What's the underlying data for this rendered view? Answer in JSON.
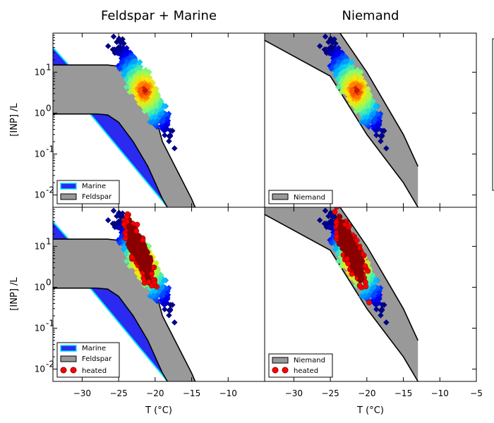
{
  "chart_data": [
    {
      "type": "scatter",
      "title": "Feldspar + Marine",
      "ylabel": "[INP] /L",
      "xlabel": "",
      "xlim": [
        -34,
        -5
      ],
      "ylim": [
        0.005,
        90
      ],
      "yscale": "log",
      "legend": {
        "placement": "lower-left",
        "entries": [
          {
            "label": "Marine",
            "color": "#2a2af0",
            "edge": "#00e5ff"
          },
          {
            "label": "Feldspar",
            "color": "#999999",
            "edge": "#000000"
          }
        ]
      },
      "series": [
        {
          "name": "Marine",
          "kind": "band",
          "color": "#2a2af0",
          "x": [
            -34,
            -14
          ],
          "low": [
            12.0,
            0.0006
          ],
          "high": [
            40.0,
            0.004
          ]
        },
        {
          "name": "Feldspar",
          "kind": "band",
          "color": "#999999",
          "x": [
            -34,
            -28,
            -26.5,
            -25,
            -23,
            -21,
            -20,
            -19,
            -17,
            -15,
            -14
          ],
          "low": [
            0.95,
            0.95,
            0.9,
            0.6,
            0.2,
            0.05,
            0.02,
            0.008,
            0.002,
            0.0004,
            0.0002
          ],
          "high": [
            15,
            15,
            15,
            14,
            8,
            3,
            0.9,
            0.2,
            0.04,
            0.008,
            0.003
          ]
        }
      ]
    },
    {
      "type": "scatter",
      "title": "Niemand",
      "xlim": [
        -34,
        -5
      ],
      "ylim": [
        0.005,
        90
      ],
      "yscale": "log",
      "legend": {
        "placement": "lower-left",
        "entries": [
          {
            "label": "Niemand",
            "color": "#999999",
            "edge": "#000000"
          }
        ]
      },
      "series": [
        {
          "name": "Niemand",
          "kind": "band",
          "color": "#999999",
          "x": [
            -34,
            -25,
            -20,
            -15,
            -13
          ],
          "low": [
            60,
            8,
            0.3,
            0.02,
            0.005
          ],
          "high": [
            500,
            200,
            10,
            0.3,
            0.05
          ]
        }
      ]
    },
    {
      "type": "scatter",
      "title": "",
      "ylabel": "[INP] /L",
      "xlabel": "T (°C)",
      "xlim": [
        -34,
        -5
      ],
      "ylim": [
        0.005,
        90
      ],
      "yscale": "log",
      "legend": {
        "placement": "lower-left",
        "entries": [
          {
            "label": "Marine",
            "color": "#2a2af0",
            "edge": "#00e5ff"
          },
          {
            "label": "Feldspar",
            "color": "#999999",
            "edge": "#000000"
          },
          {
            "label": "heated",
            "color": "#ff0000",
            "edge": "#8b0000"
          }
        ]
      },
      "series": [
        {
          "name": "Marine",
          "kind": "band",
          "color": "#2a2af0",
          "x": [
            -34,
            -14
          ],
          "low": [
            12.0,
            0.0006
          ],
          "high": [
            40.0,
            0.004
          ]
        },
        {
          "name": "Feldspar",
          "kind": "band",
          "color": "#999999",
          "x": [
            -34,
            -28,
            -26.5,
            -25,
            -23,
            -21,
            -20,
            -19,
            -17,
            -15,
            -14
          ],
          "low": [
            0.95,
            0.95,
            0.9,
            0.6,
            0.2,
            0.05,
            0.02,
            0.008,
            0.002,
            0.0004,
            0.0002
          ],
          "high": [
            15,
            15,
            15,
            14,
            8,
            3,
            0.9,
            0.2,
            0.04,
            0.008,
            0.003
          ]
        },
        {
          "name": "heated",
          "kind": "points",
          "color": "#ff0000",
          "x_range": [
            -26.5,
            -17
          ],
          "y_range": [
            0.1,
            60
          ]
        }
      ]
    },
    {
      "type": "scatter",
      "title": "",
      "xlabel": "T (°C)",
      "xlim": [
        -34,
        -5
      ],
      "ylim": [
        0.005,
        90
      ],
      "yscale": "log",
      "legend": {
        "placement": "lower-left",
        "entries": [
          {
            "label": "Niemand",
            "color": "#999999",
            "edge": "#000000"
          },
          {
            "label": "heated",
            "color": "#ff0000",
            "edge": "#8b0000"
          }
        ]
      },
      "series": [
        {
          "name": "Niemand",
          "kind": "band",
          "color": "#999999",
          "x": [
            -34,
            -25,
            -20,
            -15,
            -13
          ],
          "low": [
            60,
            8,
            0.3,
            0.02,
            0.005
          ],
          "high": [
            500,
            200,
            10,
            0.3,
            0.05
          ]
        },
        {
          "name": "heated",
          "kind": "points",
          "color": "#ff0000",
          "x_range": [
            -26.5,
            -17
          ],
          "y_range": [
            0.05,
            60
          ]
        }
      ]
    }
  ],
  "axes": {
    "xticks": [
      -30,
      -25,
      -20,
      -15,
      -10
    ],
    "xticks_right": [
      -30,
      -25,
      -20,
      -15,
      -10,
      -5
    ],
    "xtick_labels": [
      "−30",
      "−25",
      "−20",
      "−15",
      "−10"
    ],
    "xtick_labels_right": [
      "−30",
      "−25",
      "−20",
      "−15",
      "−10",
      "−5"
    ],
    "yticks": [
      0.01,
      0.1,
      1,
      10
    ],
    "ytick_labels": [
      "10",
      "10",
      "10",
      "10"
    ],
    "ytick_exps": [
      "-2",
      "-1",
      "0",
      "1"
    ]
  }
}
